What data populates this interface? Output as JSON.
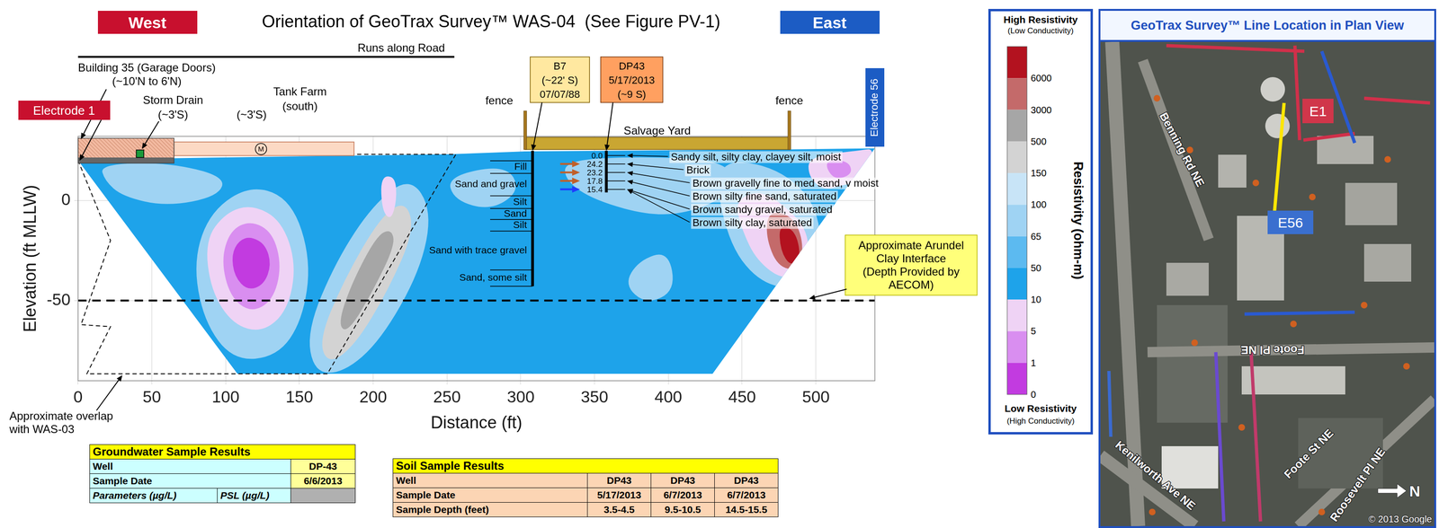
{
  "header": {
    "west": "West",
    "title": "Orientation of GeoTrax Survey™ WAS-04  (See Figure PV-1)",
    "east": "East"
  },
  "chart_data": {
    "type": "section",
    "xlabel": "Distance (ft)",
    "ylabel": "Elevation (ft MLLW)",
    "xlim": [
      0,
      540
    ],
    "xticks": [
      0,
      50,
      100,
      150,
      200,
      250,
      300,
      350,
      400,
      450,
      500
    ],
    "ylim": [
      -90,
      32
    ],
    "yticks": [
      -50,
      0
    ],
    "grid": true,
    "zones": [
      {
        "resistivity": 20,
        "points": [
          [
            0,
            20
          ],
          [
            60,
            21
          ],
          [
            150,
            22
          ],
          [
            250,
            23
          ],
          [
            303,
            24.5
          ],
          [
            400,
            25
          ],
          [
            482,
            25.5
          ],
          [
            540,
            26
          ],
          [
            430,
            -86.5
          ],
          [
            108,
            -86.5
          ]
        ]
      },
      {
        "resistivity": 80,
        "points": [
          [
            15,
            18
          ],
          [
            60,
            19
          ],
          [
            100,
            12
          ],
          [
            95,
            2
          ],
          [
            60,
            -3
          ],
          [
            30,
            2
          ],
          [
            18,
            10
          ]
        ]
      },
      {
        "resistivity": 80,
        "points": [
          [
            118,
            8
          ],
          [
            145,
            0
          ],
          [
            158,
            -30
          ],
          [
            152,
            -60
          ],
          [
            135,
            -78
          ],
          [
            105,
            -80
          ],
          [
            85,
            -60
          ],
          [
            78,
            -30
          ],
          [
            90,
            -5
          ]
        ]
      },
      {
        "resistivity": 80,
        "points": [
          [
            225,
            12
          ],
          [
            240,
            -5
          ],
          [
            232,
            -35
          ],
          [
            205,
            -70
          ],
          [
            180,
            -86
          ],
          [
            160,
            -86
          ],
          [
            155,
            -65
          ],
          [
            175,
            -30
          ],
          [
            200,
            -2
          ]
        ]
      },
      {
        "resistivity": 80,
        "points": [
          [
            330,
            20
          ],
          [
            380,
            22
          ],
          [
            440,
            20
          ],
          [
            445,
            5
          ],
          [
            420,
            -5
          ],
          [
            390,
            -8
          ],
          [
            350,
            0
          ],
          [
            330,
            10
          ]
        ]
      },
      {
        "resistivity": 80,
        "points": [
          [
            370,
            -42
          ],
          [
            380,
            -30
          ],
          [
            400,
            -25
          ],
          [
            405,
            -45
          ],
          [
            385,
            -52
          ]
        ]
      },
      {
        "resistivity": 80,
        "points": [
          [
            250,
            12
          ],
          [
            290,
            18
          ],
          [
            300,
            5
          ],
          [
            280,
            -5
          ],
          [
            255,
            0
          ]
        ]
      },
      {
        "resistivity": 80,
        "points": [
          [
            430,
            20
          ],
          [
            470,
            18
          ],
          [
            500,
            0
          ],
          [
            505,
            -30
          ],
          [
            485,
            -45
          ],
          [
            460,
            -40
          ],
          [
            440,
            -20
          ]
        ]
      },
      {
        "resistivity": 200,
        "points": [
          [
            222,
            0
          ],
          [
            228,
            -15
          ],
          [
            210,
            -45
          ],
          [
            188,
            -72
          ],
          [
            170,
            -82
          ],
          [
            163,
            -70
          ],
          [
            180,
            -40
          ],
          [
            205,
            -8
          ]
        ]
      },
      {
        "resistivity": 1000,
        "points": [
          [
            212,
            -14
          ],
          [
            215,
            -22
          ],
          [
            200,
            -45
          ],
          [
            183,
            -66
          ],
          [
            176,
            -62
          ],
          [
            185,
            -42
          ],
          [
            202,
            -18
          ]
        ]
      },
      {
        "resistivity": 7,
        "points": [
          [
            118,
            -2
          ],
          [
            138,
            -10
          ],
          [
            148,
            -32
          ],
          [
            142,
            -55
          ],
          [
            125,
            -66
          ],
          [
            105,
            -62
          ],
          [
            90,
            -45
          ],
          [
            86,
            -20
          ],
          [
            100,
            -6
          ]
        ]
      },
      {
        "resistivity": 3,
        "points": [
          [
            117,
            -10
          ],
          [
            132,
            -16
          ],
          [
            138,
            -33
          ],
          [
            132,
            -50
          ],
          [
            117,
            -56
          ],
          [
            103,
            -48
          ],
          [
            97,
            -30
          ],
          [
            103,
            -15
          ]
        ]
      },
      {
        "resistivity": 0.5,
        "points": [
          [
            117,
            -18
          ],
          [
            127,
            -22
          ],
          [
            131,
            -32
          ],
          [
            126,
            -42
          ],
          [
            115,
            -45
          ],
          [
            106,
            -38
          ],
          [
            104,
            -27
          ],
          [
            109,
            -20
          ]
        ]
      },
      {
        "resistivity": 7,
        "points": [
          [
            205,
            12
          ],
          [
            215,
            12
          ],
          [
            216,
            0
          ],
          [
            212,
            -10
          ],
          [
            206,
            -5
          ]
        ]
      },
      {
        "resistivity": 7,
        "points": [
          [
            445,
            0
          ],
          [
            462,
            5
          ],
          [
            478,
            -2
          ],
          [
            495,
            -15
          ],
          [
            495,
            -35
          ],
          [
            478,
            -40
          ],
          [
            460,
            -30
          ],
          [
            450,
            -15
          ]
        ]
      },
      {
        "resistivity": 4000,
        "points": [
          [
            468,
            -5
          ],
          [
            485,
            -8
          ],
          [
            492,
            -22
          ],
          [
            488,
            -35
          ],
          [
            474,
            -33
          ],
          [
            466,
            -18
          ]
        ]
      },
      {
        "resistivity": 7000,
        "points": [
          [
            475,
            -12
          ],
          [
            486,
            -15
          ],
          [
            490,
            -28
          ],
          [
            483,
            -33
          ],
          [
            476,
            -25
          ]
        ]
      },
      {
        "resistivity": 7,
        "points": [
          [
            495,
            22
          ],
          [
            530,
            25
          ],
          [
            540,
            26
          ],
          [
            535,
            10
          ],
          [
            520,
            8
          ],
          [
            505,
            5
          ],
          [
            495,
            12
          ]
        ]
      },
      {
        "resistivity": 3,
        "points": [
          [
            505,
            20
          ],
          [
            522,
            20
          ],
          [
            525,
            13
          ],
          [
            512,
            10
          ]
        ]
      }
    ],
    "arundel_clay": {
      "elevation": -50,
      "text": [
        "Approximate Arundel",
        "Clay Interface",
        "(Depth Provided by",
        "AECOM)"
      ]
    },
    "overlap": {
      "text": [
        "Approximate overlap",
        "with WAS-03"
      ],
      "points": [
        [
          0,
          20
        ],
        [
          22,
          -20
        ],
        [
          2,
          -62
        ],
        [
          22,
          -63
        ],
        [
          6,
          -86.5
        ],
        [
          169,
          -86.5
        ],
        [
          256,
          23
        ],
        [
          187,
          23
        ]
      ]
    },
    "road": {
      "text": "Runs along Road",
      "x": [
        0,
        255
      ]
    },
    "building": {
      "text": [
        "Building 35 (Garage Doors)",
        "(~10'N to 6'N)"
      ],
      "x": [
        0,
        65
      ]
    },
    "electrode_1": {
      "text": "Electrode 1",
      "x": 0
    },
    "storm_drain": {
      "text": [
        "Storm Drain",
        "(~3'S)"
      ],
      "x": 42
    },
    "well_m": {
      "text": "(~3'S)",
      "symbol": "M",
      "x": 124
    },
    "tank_farm": {
      "text": [
        "Tank Farm",
        "(south)"
      ],
      "x": [
        65,
        187
      ]
    },
    "salvage_yard": {
      "text": "Salvage Yard",
      "x": [
        303,
        482
      ]
    },
    "fence": {
      "text": "fence",
      "x": [
        303,
        482
      ]
    },
    "electrode_56": {
      "text": "Electrode 56",
      "x": 540
    },
    "b7": {
      "text": [
        "B7",
        "(~22' S)",
        "07/07/88"
      ],
      "x": 308,
      "top": 24.8,
      "layers": [
        {
          "label": "Fill",
          "top": 19.8,
          "bottom": 13.5
        },
        {
          "label": "Sand and gravel",
          "top": 13.5,
          "bottom": 2.3
        },
        {
          "label": "Silt",
          "top": 2.3,
          "bottom": -4
        },
        {
          "label": "Sand",
          "top": -4,
          "bottom": -9.5
        },
        {
          "label": "Silt",
          "top": -9.5,
          "bottom": -15.3
        },
        {
          "label": "Sand with trace gravel",
          "top": -15.3,
          "bottom": -34.7
        },
        {
          "label": "Sand, some silt",
          "top": -34.7,
          "bottom": -42.8
        }
      ]
    },
    "dp43": {
      "text": [
        "DP43",
        "5/17/2013",
        "(~9 S)"
      ],
      "x": 358,
      "top": 24.8,
      "bottom": 4,
      "depths": [
        "0.0",
        "24.2",
        "23.2",
        "17.8",
        "15.4"
      ],
      "descriptions": [
        "Sandy silt, silty clay, clayey silt, moist",
        "Brick",
        "Brown gravelly fine to med sand, v moist",
        "Brown silty fine sand, saturated",
        "Brown sandy gravel, saturated",
        "Brown silty clay, saturated"
      ]
    }
  },
  "color_bar": {
    "title": "Resistivity (ohm-m)",
    "top_label": [
      "High Resistivity",
      "(Low Conductivity)"
    ],
    "bottom_label": [
      "Low Resistivity",
      "(High Conductivity)"
    ],
    "ticks": [
      6000,
      3000,
      500,
      150,
      100,
      65,
      50,
      10,
      5,
      1,
      0
    ],
    "colors": [
      "#b3121f",
      "#c46a6a",
      "#a6a6a6",
      "#d3d3d3",
      "#c8e4f7",
      "#9fd3f3",
      "#5cbaf0",
      "#1ea3ea",
      "#efd3f5",
      "#d98ef0",
      "#c23be0"
    ]
  },
  "map": {
    "title": "GeoTrax Survey™ Line Location in Plan View",
    "streets": [
      "Benning Rd NE",
      "Foote Pl NE",
      "Kenilworth Ave NE",
      "Foote St NE",
      "Roosevelt Pl NE"
    ],
    "markers": [
      "E1",
      "E56"
    ],
    "north": "N",
    "credit": "© 2013 Google"
  },
  "groundwater_table": {
    "title": "Groundwater Sample Results",
    "rows": [
      {
        "label": "Well",
        "values": [
          "DP-43"
        ]
      },
      {
        "label": "Sample Date",
        "values": [
          "6/6/2013"
        ]
      }
    ],
    "header": [
      "Parameters (µg/L)",
      "PSL (µg/L)"
    ]
  },
  "soil_table": {
    "title": "Soil Sample Results",
    "rows": [
      {
        "label": "Well",
        "values": [
          "DP43",
          "DP43",
          "DP43"
        ]
      },
      {
        "label": "Sample Date",
        "values": [
          "5/17/2013",
          "6/7/2013",
          "6/7/2013"
        ]
      },
      {
        "label": "Sample Depth (feet)",
        "values": [
          "3.5-4.5",
          "9.5-10.5",
          "14.5-15.5"
        ]
      }
    ]
  }
}
